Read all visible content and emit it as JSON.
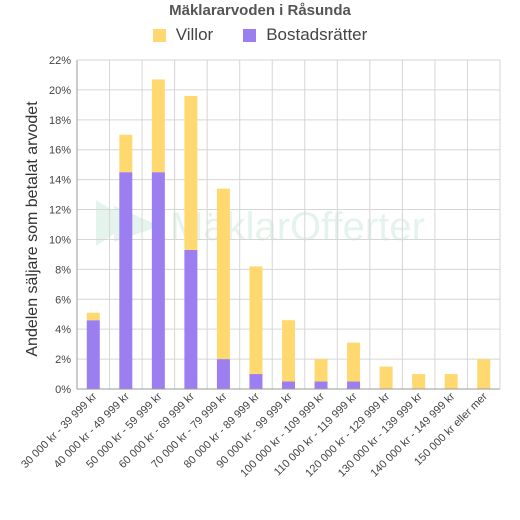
{
  "chart_data": {
    "type": "bar",
    "stacked": true,
    "title": "Mäklararvoden i Råsunda",
    "xlabel": "",
    "ylabel": "Andelen säljare som betalat arvodet",
    "ylim": [
      0,
      22
    ],
    "yticks": [
      "0%",
      "2%",
      "4%",
      "6%",
      "8%",
      "10%",
      "12%",
      "14%",
      "16%",
      "18%",
      "20%",
      "22%"
    ],
    "grid": true,
    "legend_position": "top",
    "categories": [
      "30 000 kr - 39 999 kr",
      "40 000 kr - 49 999 kr",
      "50 000 kr - 59 999 kr",
      "60 000 kr - 69 999 kr",
      "70 000 kr - 79 999 kr",
      "80 000 kr - 89 999 kr",
      "90 000 kr - 99 999 kr",
      "100 000 kr - 109 999 kr",
      "110 000 kr - 119 999 kr",
      "120 000 kr - 129 999 kr",
      "130 000 kr - 139 999 kr",
      "140 000 kr - 149 999 kr",
      "150 000 kr eller mer"
    ],
    "series": [
      {
        "name": "Bostadsrätter",
        "color": "#9b7ff0",
        "values": [
          4.6,
          14.5,
          14.5,
          9.3,
          2.0,
          1.0,
          0.5,
          0.5,
          0.5,
          0,
          0,
          0,
          0
        ]
      },
      {
        "name": "Villor",
        "color": "#ffd970",
        "values": [
          0.5,
          2.5,
          6.2,
          10.3,
          11.4,
          7.2,
          4.1,
          1.5,
          2.6,
          1.5,
          1.0,
          1.0,
          2.0
        ]
      }
    ],
    "legend_order": [
      "Villor",
      "Bostadsrätter"
    ]
  },
  "watermark": "MäklarOfferter"
}
